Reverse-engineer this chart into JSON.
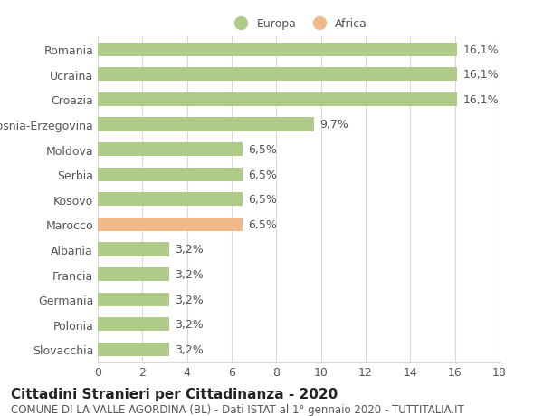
{
  "categories": [
    "Romania",
    "Ucraina",
    "Croazia",
    "Bosnia-Erzegovina",
    "Moldova",
    "Serbia",
    "Kosovo",
    "Marocco",
    "Albania",
    "Francia",
    "Germania",
    "Polonia",
    "Slovacchia"
  ],
  "values": [
    16.1,
    16.1,
    16.1,
    9.7,
    6.5,
    6.5,
    6.5,
    6.5,
    3.2,
    3.2,
    3.2,
    3.2,
    3.2
  ],
  "labels": [
    "16,1%",
    "16,1%",
    "16,1%",
    "9,7%",
    "6,5%",
    "6,5%",
    "6,5%",
    "6,5%",
    "3,2%",
    "3,2%",
    "3,2%",
    "3,2%",
    "3,2%"
  ],
  "colors": [
    "#aecb8a",
    "#aecb8a",
    "#aecb8a",
    "#aecb8a",
    "#aecb8a",
    "#aecb8a",
    "#aecb8a",
    "#f0b98a",
    "#aecb8a",
    "#aecb8a",
    "#aecb8a",
    "#aecb8a",
    "#aecb8a"
  ],
  "europa_color": "#aecb8a",
  "africa_color": "#f0b98a",
  "xlim": [
    0,
    18
  ],
  "xticks": [
    0,
    2,
    4,
    6,
    8,
    10,
    12,
    14,
    16,
    18
  ],
  "title": "Cittadini Stranieri per Cittadinanza - 2020",
  "subtitle": "COMUNE DI LA VALLE AGORDINA (BL) - Dati ISTAT al 1° gennaio 2020 - TUTTITALIA.IT",
  "legend_europa": "Europa",
  "legend_africa": "Africa",
  "background_color": "#ffffff",
  "grid_color": "#d8d8d8",
  "bar_height": 0.55,
  "label_fontsize": 9,
  "title_fontsize": 11,
  "subtitle_fontsize": 8.5,
  "tick_fontsize": 9
}
